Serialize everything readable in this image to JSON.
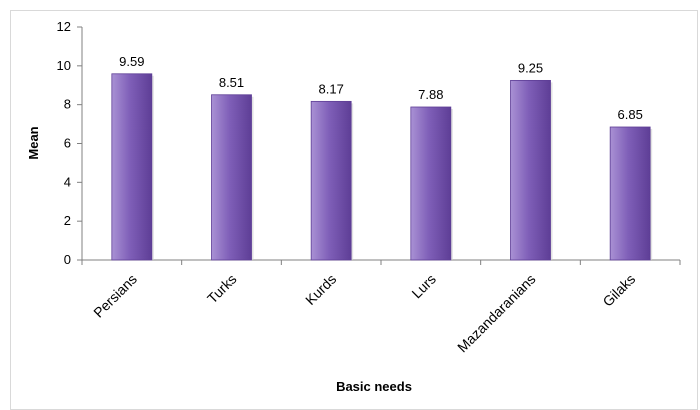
{
  "chart_data": {
    "type": "bar",
    "title": "",
    "xlabel": "Basic needs",
    "ylabel": "Mean",
    "categories": [
      "Persians",
      "Turks",
      "Kurds",
      "Lurs",
      "Mazandaranians",
      "Gilaks"
    ],
    "values": [
      9.59,
      8.51,
      8.17,
      7.88,
      9.25,
      6.85
    ],
    "value_labels": [
      "9.59",
      "8.51",
      "8.17",
      "7.88",
      "9.25",
      "6.85"
    ],
    "ylim": [
      0,
      12
    ],
    "yticks": [
      "0",
      "2",
      "4",
      "6",
      "8",
      "10",
      "12"
    ],
    "grid": false,
    "legend": "none",
    "colors": {
      "bar_light": "#A991D4",
      "bar_mid": "#7F5FB8",
      "bar_dark": "#5E3E96",
      "axis": "#808080"
    }
  }
}
